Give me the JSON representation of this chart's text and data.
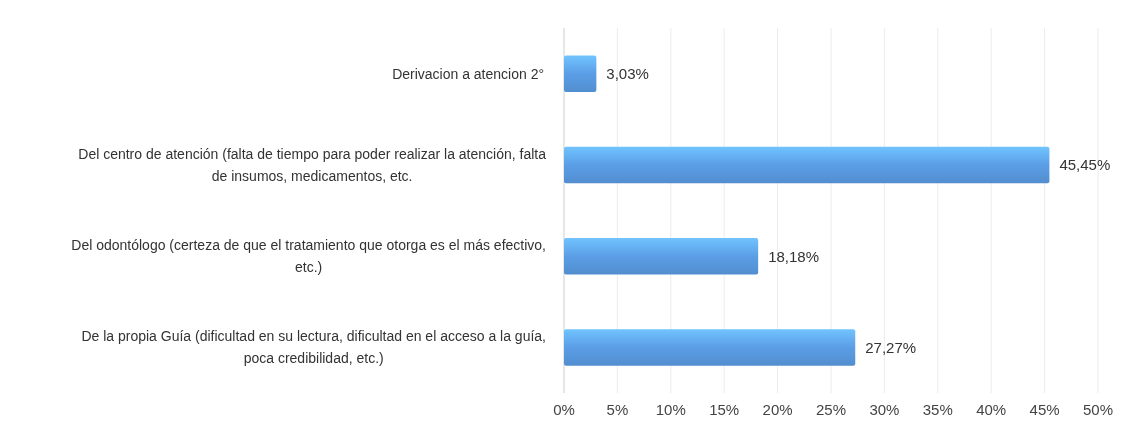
{
  "chart_data": {
    "type": "bar",
    "orientation": "horizontal",
    "categories": [
      "Derivacion a atencion  2°",
      "Del centro de atención (falta de tiempo para poder realizar la atención, falta de insumos, medicamentos, etc.",
      "Del odontólogo (certeza de que el tratamiento que otorga es el más efectivo, etc.)",
      "De la propia Guía (dificultad en su lectura, dificultad en el acceso a la guía, poca credibilidad, etc.)"
    ],
    "values": [
      3.03,
      45.45,
      18.18,
      27.27
    ],
    "value_labels": [
      "3,03%",
      "45,45%",
      "18,18%",
      "27,27%"
    ],
    "color": "#5b9ee6",
    "xlim": [
      0,
      50
    ],
    "xticks": [
      {
        "value": 0,
        "label": "0%"
      },
      {
        "value": 5,
        "label": "5%"
      },
      {
        "value": 10,
        "label": "10%"
      },
      {
        "value": 15,
        "label": "15%"
      },
      {
        "value": 20,
        "label": "20%"
      },
      {
        "value": 25,
        "label": "25%"
      },
      {
        "value": 30,
        "label": "30%"
      },
      {
        "value": 35,
        "label": "35%"
      },
      {
        "value": 40,
        "label": "40%"
      },
      {
        "value": 45,
        "label": "45%"
      },
      {
        "value": 50,
        "label": "50%"
      }
    ],
    "grid": "x"
  }
}
